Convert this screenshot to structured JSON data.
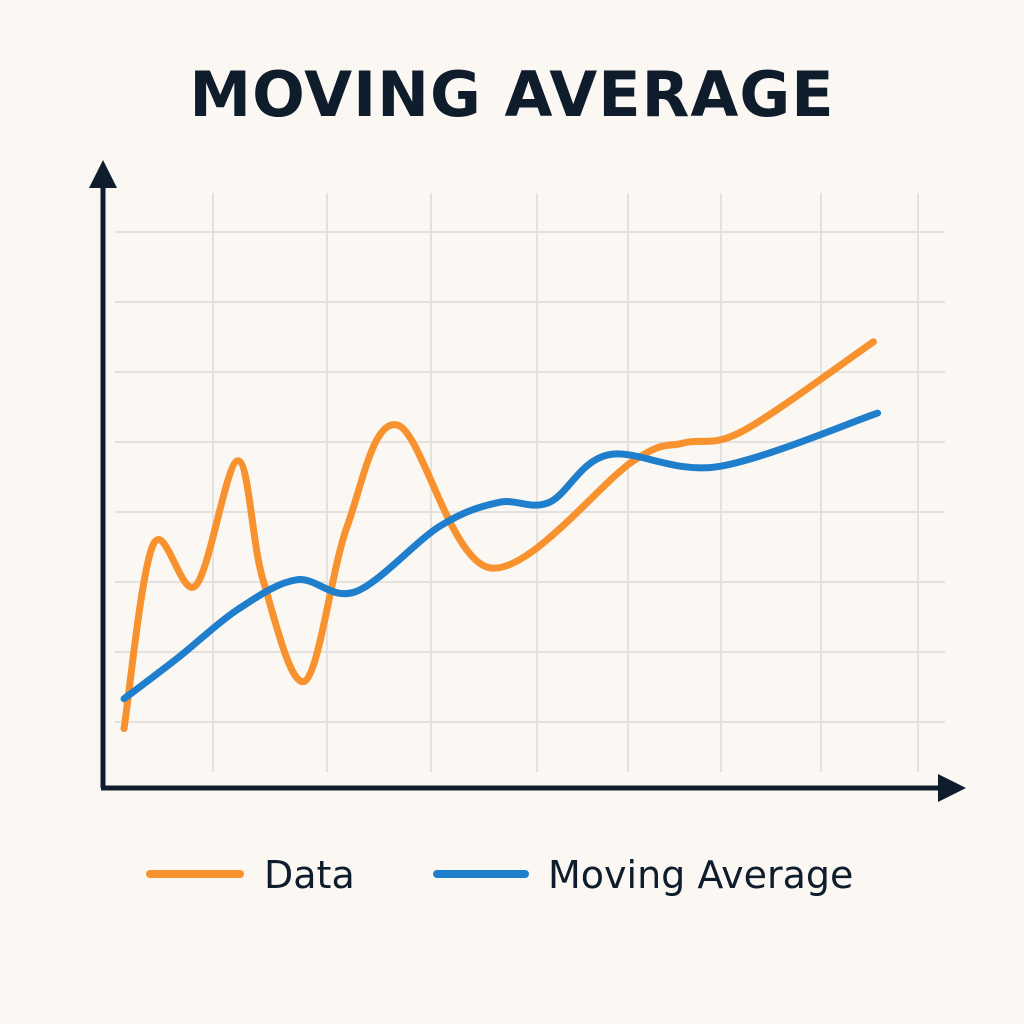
{
  "chart_data": {
    "type": "line",
    "title": "MOVING AVERAGE",
    "xlabel": "",
    "ylabel": "",
    "grid": true,
    "xlim": [
      0,
      10
    ],
    "ylim": [
      0,
      10
    ],
    "legend_position": "bottom",
    "series": [
      {
        "name": "Data",
        "color": "#F7922E",
        "points": [
          [
            0.25,
            1.0
          ],
          [
            0.6,
            4.1
          ],
          [
            1.1,
            3.4
          ],
          [
            1.6,
            5.5
          ],
          [
            1.9,
            3.5
          ],
          [
            2.4,
            1.8
          ],
          [
            2.9,
            4.4
          ],
          [
            3.5,
            6.1
          ],
          [
            4.6,
            3.7
          ],
          [
            6.3,
            5.5
          ],
          [
            6.9,
            5.8
          ],
          [
            7.6,
            6.0
          ],
          [
            9.15,
            7.5
          ]
        ]
      },
      {
        "name": "Moving Average",
        "color": "#1F7FCC",
        "points": [
          [
            0.25,
            1.5
          ],
          [
            0.9,
            2.2
          ],
          [
            1.6,
            3.0
          ],
          [
            2.3,
            3.5
          ],
          [
            3.0,
            3.3
          ],
          [
            4.0,
            4.4
          ],
          [
            4.7,
            4.8
          ],
          [
            5.3,
            4.8
          ],
          [
            6.0,
            5.6
          ],
          [
            7.3,
            5.4
          ],
          [
            9.2,
            6.3
          ]
        ]
      }
    ],
    "colors": {
      "title": "#0E1C2C",
      "axis": "#0E1C2C",
      "grid": "#E4E2DE",
      "background": "#FBF8F3"
    }
  }
}
